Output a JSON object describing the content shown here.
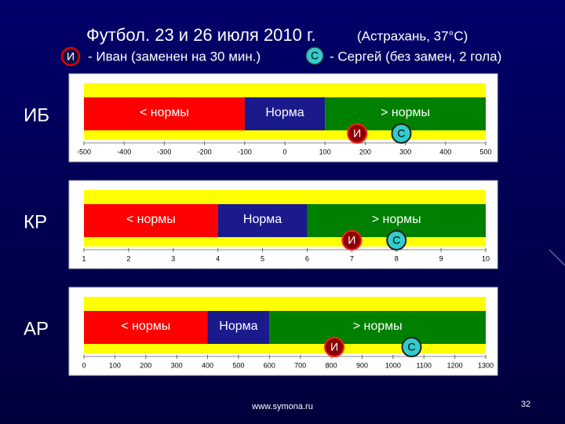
{
  "title": "Футбол. 23 и 26 июля 2010 г.",
  "title_note": "(Астрахань, 37°С)",
  "legend": [
    {
      "symbol": "И",
      "text": "- Иван (заменен на 30 мин.)"
    },
    {
      "symbol": "С",
      "text": "- Сергей (без замен, 2 гола)"
    }
  ],
  "panels": [
    {
      "label": "ИБ",
      "ticks": [
        -500,
        -400,
        -300,
        -200,
        -100,
        0,
        100,
        200,
        300,
        400,
        500
      ],
      "zones": [
        {
          "label": "< нормы",
          "from": -500,
          "to": -100
        },
        {
          "label": "Норма",
          "from": -100,
          "to": 100
        },
        {
          "label": "> нормы",
          "from": 100,
          "to": 500
        }
      ],
      "markers": [
        {
          "symbol": "И",
          "value": 180
        },
        {
          "symbol": "С",
          "value": 290
        }
      ]
    },
    {
      "label": "КР",
      "ticks": [
        1,
        2,
        3,
        4,
        5,
        6,
        7,
        8,
        9,
        10
      ],
      "zones": [
        {
          "label": "< нормы",
          "from": 1,
          "to": 4
        },
        {
          "label": "Норма",
          "from": 4,
          "to": 6
        },
        {
          "label": "> нормы",
          "from": 6,
          "to": 10
        }
      ],
      "markers": [
        {
          "symbol": "И",
          "value": 7
        },
        {
          "symbol": "С",
          "value": 8
        }
      ]
    },
    {
      "label": "АР",
      "ticks": [
        0,
        100,
        200,
        300,
        400,
        500,
        600,
        700,
        800,
        900,
        1000,
        1100,
        1200,
        1300
      ],
      "zones": [
        {
          "label": "< нормы",
          "from": 0,
          "to": 400
        },
        {
          "label": "Норма",
          "from": 400,
          "to": 600
        },
        {
          "label": "> нормы",
          "from": 600,
          "to": 1300
        }
      ],
      "markers": [
        {
          "symbol": "И",
          "value": 810
        },
        {
          "symbol": "С",
          "value": 1060
        }
      ]
    }
  ],
  "footer": "www.symona.ru",
  "page_number": "32"
}
